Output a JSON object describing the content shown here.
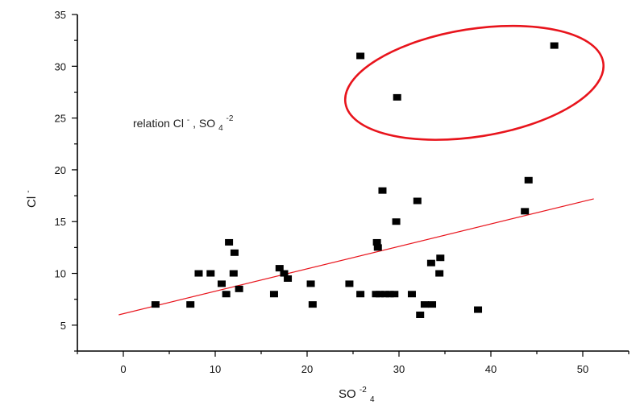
{
  "chart_data": {
    "type": "scatter",
    "title": "",
    "xlabel": "SO",
    "xlabel_sup": "-2",
    "xlabel_sub": "4",
    "ylabel": "Cl",
    "ylabel_sup": "-",
    "xlim": [
      -5,
      55
    ],
    "ylim": [
      2.5,
      35
    ],
    "x_ticks": [
      0,
      10,
      20,
      30,
      40,
      50
    ],
    "y_ticks": [
      5,
      10,
      15,
      20,
      25,
      30,
      35
    ],
    "x_tick_labels": [
      "0",
      "10",
      "20",
      "30",
      "40",
      "50"
    ],
    "y_tick_labels": [
      "5",
      "10",
      "15",
      "20",
      "25",
      "30",
      "35"
    ],
    "grid": false,
    "legend": "none",
    "colors": {
      "points": "#000000",
      "fit_line": "#e8141c",
      "highlight_ellipse": "#e8141c"
    },
    "series": [
      {
        "marker": "square",
        "x": [
          3.5,
          7.3,
          8.2,
          9.5,
          10.7,
          11.2,
          11.5,
          12.0,
          12.1,
          12.6,
          16.4,
          17.0,
          17.5,
          17.9,
          20.4,
          20.6,
          24.6,
          25.8,
          27.5,
          27.6,
          27.7,
          27.9,
          28.2,
          28.5,
          29.0,
          29.5,
          29.7,
          31.4,
          32.0,
          32.3,
          32.8,
          33.5,
          33.6,
          34.4,
          34.5,
          38.6,
          43.7,
          44.1,
          25.8,
          29.8,
          46.9
        ],
        "y": [
          7.0,
          7.0,
          10.0,
          10.0,
          9.0,
          8.0,
          13.0,
          10.0,
          12.0,
          8.5,
          8.0,
          10.5,
          10.0,
          9.5,
          9.0,
          7.0,
          9.0,
          8.0,
          8.0,
          13.0,
          12.5,
          8.0,
          18.0,
          8.0,
          8.0,
          8.0,
          15.0,
          8.0,
          17.0,
          6.0,
          7.0,
          11.0,
          7.0,
          10.0,
          11.5,
          6.5,
          16.0,
          19.0,
          31.0,
          27.0,
          32.0
        ]
      }
    ],
    "fit_line": {
      "x": [
        -0.5,
        51.2
      ],
      "y": [
        6.0,
        17.2
      ]
    },
    "annotation": {
      "text": "relation Cl",
      "sup1": "-",
      "text2": ", SO",
      "sub": "4",
      "sup2": "-2"
    },
    "highlight_ellipse": {
      "cx": 38.2,
      "cy": 28.4,
      "rx": 14.2,
      "ry": 5.2,
      "rotation_deg": -9
    }
  }
}
